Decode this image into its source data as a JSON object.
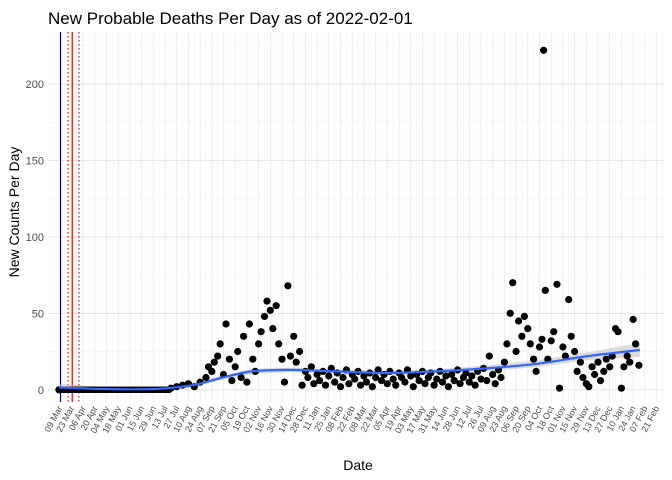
{
  "chart_data": {
    "type": "scatter",
    "title": "New Probable Deaths Per Day as of 2022-02-01",
    "xlabel": "Date",
    "ylabel": "New Counts Per Day",
    "ylim": [
      -8,
      234
    ],
    "y_ticks": [
      0,
      50,
      100,
      150,
      200
    ],
    "xlim": [
      "2020-02-24",
      "2022-03-02"
    ],
    "x_tick_labels": [
      "09 Mar",
      "23 Mar",
      "06 Apr",
      "20 Apr",
      "04 May",
      "18 May",
      "01 Jun",
      "15 Jun",
      "29 Jun",
      "13 Jul",
      "27 Jul",
      "10 Aug",
      "24 Aug",
      "07 Sep",
      "21 Sep",
      "05 Oct",
      "19 Oct",
      "02 Nov",
      "16 Nov",
      "30 Nov",
      "14 Dec",
      "28 Dec",
      "11 Jan",
      "25 Jan",
      "08 Feb",
      "22 Feb",
      "08 Mar",
      "22 Mar",
      "05 Apr",
      "19 Apr",
      "03 May",
      "17 May",
      "31 May",
      "14 Jun",
      "28 Jun",
      "12 Jul",
      "26 Jul",
      "09 Aug",
      "23 Aug",
      "06 Sep",
      "20 Sep",
      "04 Oct",
      "18 Oct",
      "01 Nov",
      "15 Nov",
      "29 Nov",
      "13 Dec",
      "27 Dec",
      "10 Jan",
      "24 Jan",
      "07 Feb",
      "21 Feb"
    ],
    "grid": true,
    "vertical_lines": [
      {
        "date": "2020-03-10",
        "color": "#00008b",
        "style": "solid"
      },
      {
        "date": "2020-03-24",
        "color": "#cc0000",
        "style": "solid"
      },
      {
        "date": "2020-03-19",
        "color": "#cc0000",
        "style": "dotted"
      },
      {
        "date": "2020-04-01",
        "color": "#cc0000",
        "style": "dotted"
      }
    ],
    "trend": {
      "color": "#3366ff",
      "band_color": "#bdbdbd",
      "points": [
        {
          "x": "2020-03-08",
          "y": 1.5
        },
        {
          "x": "2020-05-01",
          "y": 0.5
        },
        {
          "x": "2020-07-01",
          "y": 0.5
        },
        {
          "x": "2020-08-15",
          "y": 3
        },
        {
          "x": "2020-09-20",
          "y": 8
        },
        {
          "x": "2020-10-25",
          "y": 12
        },
        {
          "x": "2020-12-10",
          "y": 13
        },
        {
          "x": "2021-02-01",
          "y": 12
        },
        {
          "x": "2021-04-01",
          "y": 11
        },
        {
          "x": "2021-06-01",
          "y": 12
        },
        {
          "x": "2021-08-01",
          "y": 14
        },
        {
          "x": "2021-10-01",
          "y": 17
        },
        {
          "x": "2021-12-01",
          "y": 22
        },
        {
          "x": "2022-02-01",
          "y": 26
        }
      ],
      "band_halfwidth": [
        2.5,
        1.5,
        1.2,
        1.2,
        1.5,
        1.8,
        1.5,
        1.2,
        1.2,
        1.3,
        1.8,
        2.2,
        2.6,
        4.5
      ]
    },
    "series": [
      {
        "color": "#000000",
        "points": [
          {
            "x": "2020-03-08",
            "y": 0
          },
          {
            "x": "2020-07-20",
            "y": 1
          },
          {
            "x": "2020-07-27",
            "y": 2
          },
          {
            "x": "2020-08-03",
            "y": 3
          },
          {
            "x": "2020-08-10",
            "y": 4
          },
          {
            "x": "2020-08-17",
            "y": 2
          },
          {
            "x": "2020-08-24",
            "y": 5
          },
          {
            "x": "2020-08-31",
            "y": 8
          },
          {
            "x": "2020-09-03",
            "y": 15
          },
          {
            "x": "2020-09-07",
            "y": 12
          },
          {
            "x": "2020-09-10",
            "y": 18
          },
          {
            "x": "2020-09-14",
            "y": 22
          },
          {
            "x": "2020-09-17",
            "y": 30
          },
          {
            "x": "2020-09-21",
            "y": 10
          },
          {
            "x": "2020-09-24",
            "y": 43
          },
          {
            "x": "2020-09-28",
            "y": 20
          },
          {
            "x": "2020-10-01",
            "y": 6
          },
          {
            "x": "2020-10-05",
            "y": 15
          },
          {
            "x": "2020-10-08",
            "y": 25
          },
          {
            "x": "2020-10-12",
            "y": 8
          },
          {
            "x": "2020-10-15",
            "y": 35
          },
          {
            "x": "2020-10-19",
            "y": 5
          },
          {
            "x": "2020-10-22",
            "y": 43
          },
          {
            "x": "2020-10-26",
            "y": 20
          },
          {
            "x": "2020-10-29",
            "y": 12
          },
          {
            "x": "2020-11-02",
            "y": 30
          },
          {
            "x": "2020-11-05",
            "y": 38
          },
          {
            "x": "2020-11-09",
            "y": 48
          },
          {
            "x": "2020-11-12",
            "y": 58
          },
          {
            "x": "2020-11-16",
            "y": 52
          },
          {
            "x": "2020-11-19",
            "y": 40
          },
          {
            "x": "2020-11-23",
            "y": 55
          },
          {
            "x": "2020-11-26",
            "y": 30
          },
          {
            "x": "2020-11-30",
            "y": 20
          },
          {
            "x": "2020-12-03",
            "y": 5
          },
          {
            "x": "2020-12-07",
            "y": 68
          },
          {
            "x": "2020-12-10",
            "y": 22
          },
          {
            "x": "2020-12-14",
            "y": 35
          },
          {
            "x": "2020-12-17",
            "y": 18
          },
          {
            "x": "2020-12-21",
            "y": 25
          },
          {
            "x": "2020-12-24",
            "y": 3
          },
          {
            "x": "2020-12-28",
            "y": 12
          },
          {
            "x": "2020-12-31",
            "y": 8
          },
          {
            "x": "2021-01-04",
            "y": 15
          },
          {
            "x": "2021-01-07",
            "y": 4
          },
          {
            "x": "2021-01-11",
            "y": 10
          },
          {
            "x": "2021-01-14",
            "y": 6
          },
          {
            "x": "2021-01-18",
            "y": 12
          },
          {
            "x": "2021-01-21",
            "y": 3
          },
          {
            "x": "2021-01-25",
            "y": 9
          },
          {
            "x": "2021-01-28",
            "y": 14
          },
          {
            "x": "2021-02-01",
            "y": 5
          },
          {
            "x": "2021-02-04",
            "y": 11
          },
          {
            "x": "2021-02-08",
            "y": 2
          },
          {
            "x": "2021-02-11",
            "y": 8
          },
          {
            "x": "2021-02-15",
            "y": 13
          },
          {
            "x": "2021-02-18",
            "y": 4
          },
          {
            "x": "2021-02-22",
            "y": 10
          },
          {
            "x": "2021-02-25",
            "y": 7
          },
          {
            "x": "2021-03-01",
            "y": 12
          },
          {
            "x": "2021-03-04",
            "y": 3
          },
          {
            "x": "2021-03-08",
            "y": 9
          },
          {
            "x": "2021-03-11",
            "y": 5
          },
          {
            "x": "2021-03-15",
            "y": 11
          },
          {
            "x": "2021-03-18",
            "y": 2
          },
          {
            "x": "2021-03-22",
            "y": 8
          },
          {
            "x": "2021-03-25",
            "y": 13
          },
          {
            "x": "2021-03-29",
            "y": 6
          },
          {
            "x": "2021-04-01",
            "y": 10
          },
          {
            "x": "2021-04-05",
            "y": 4
          },
          {
            "x": "2021-04-08",
            "y": 12
          },
          {
            "x": "2021-04-12",
            "y": 7
          },
          {
            "x": "2021-04-15",
            "y": 3
          },
          {
            "x": "2021-04-19",
            "y": 11
          },
          {
            "x": "2021-04-22",
            "y": 8
          },
          {
            "x": "2021-04-26",
            "y": 5
          },
          {
            "x": "2021-04-29",
            "y": 13
          },
          {
            "x": "2021-05-03",
            "y": 9
          },
          {
            "x": "2021-05-06",
            "y": 2
          },
          {
            "x": "2021-05-10",
            "y": 10
          },
          {
            "x": "2021-05-13",
            "y": 6
          },
          {
            "x": "2021-05-17",
            "y": 12
          },
          {
            "x": "2021-05-20",
            "y": 4
          },
          {
            "x": "2021-05-24",
            "y": 8
          },
          {
            "x": "2021-05-27",
            "y": 11
          },
          {
            "x": "2021-05-31",
            "y": 3
          },
          {
            "x": "2021-06-03",
            "y": 7
          },
          {
            "x": "2021-06-07",
            "y": 12
          },
          {
            "x": "2021-06-10",
            "y": 5
          },
          {
            "x": "2021-06-14",
            "y": 9
          },
          {
            "x": "2021-06-17",
            "y": 2
          },
          {
            "x": "2021-06-21",
            "y": 10
          },
          {
            "x": "2021-06-24",
            "y": 6
          },
          {
            "x": "2021-06-28",
            "y": 13
          },
          {
            "x": "2021-07-01",
            "y": 4
          },
          {
            "x": "2021-07-05",
            "y": 8
          },
          {
            "x": "2021-07-08",
            "y": 11
          },
          {
            "x": "2021-07-12",
            "y": 5
          },
          {
            "x": "2021-07-15",
            "y": 9
          },
          {
            "x": "2021-07-19",
            "y": 3
          },
          {
            "x": "2021-07-22",
            "y": 12
          },
          {
            "x": "2021-07-26",
            "y": 7
          },
          {
            "x": "2021-07-29",
            "y": 14
          },
          {
            "x": "2021-08-02",
            "y": 6
          },
          {
            "x": "2021-08-05",
            "y": 22
          },
          {
            "x": "2021-08-09",
            "y": 10
          },
          {
            "x": "2021-08-12",
            "y": 4
          },
          {
            "x": "2021-08-16",
            "y": 13
          },
          {
            "x": "2021-08-19",
            "y": 8
          },
          {
            "x": "2021-08-23",
            "y": 18
          },
          {
            "x": "2021-08-26",
            "y": 30
          },
          {
            "x": "2021-08-30",
            "y": 50
          },
          {
            "x": "2021-09-02",
            "y": 70
          },
          {
            "x": "2021-09-06",
            "y": 25
          },
          {
            "x": "2021-09-09",
            "y": 45
          },
          {
            "x": "2021-09-13",
            "y": 35
          },
          {
            "x": "2021-09-16",
            "y": 48
          },
          {
            "x": "2021-09-20",
            "y": 40
          },
          {
            "x": "2021-09-23",
            "y": 30
          },
          {
            "x": "2021-09-27",
            "y": 20
          },
          {
            "x": "2021-09-30",
            "y": 12
          },
          {
            "x": "2021-10-04",
            "y": 28
          },
          {
            "x": "2021-10-07",
            "y": 33
          },
          {
            "x": "2021-10-09",
            "y": 222
          },
          {
            "x": "2021-10-11",
            "y": 65
          },
          {
            "x": "2021-10-14",
            "y": 20
          },
          {
            "x": "2021-10-18",
            "y": 32
          },
          {
            "x": "2021-10-21",
            "y": 38
          },
          {
            "x": "2021-10-25",
            "y": 69
          },
          {
            "x": "2021-10-28",
            "y": 1
          },
          {
            "x": "2021-11-01",
            "y": 28
          },
          {
            "x": "2021-11-04",
            "y": 22
          },
          {
            "x": "2021-11-08",
            "y": 59
          },
          {
            "x": "2021-11-11",
            "y": 35
          },
          {
            "x": "2021-11-15",
            "y": 25
          },
          {
            "x": "2021-11-18",
            "y": 12
          },
          {
            "x": "2021-11-22",
            "y": 18
          },
          {
            "x": "2021-11-25",
            "y": 8
          },
          {
            "x": "2021-11-29",
            "y": 4
          },
          {
            "x": "2021-12-02",
            "y": 2
          },
          {
            "x": "2021-12-06",
            "y": 15
          },
          {
            "x": "2021-12-09",
            "y": 10
          },
          {
            "x": "2021-12-13",
            "y": 18
          },
          {
            "x": "2021-12-16",
            "y": 6
          },
          {
            "x": "2021-12-20",
            "y": 12
          },
          {
            "x": "2021-12-23",
            "y": 20
          },
          {
            "x": "2021-12-27",
            "y": 15
          },
          {
            "x": "2021-12-30",
            "y": 22
          },
          {
            "x": "2022-01-03",
            "y": 40
          },
          {
            "x": "2022-01-06",
            "y": 38
          },
          {
            "x": "2022-01-10",
            "y": 1
          },
          {
            "x": "2022-01-13",
            "y": 15
          },
          {
            "x": "2022-01-17",
            "y": 22
          },
          {
            "x": "2022-01-20",
            "y": 18
          },
          {
            "x": "2022-01-24",
            "y": 46
          },
          {
            "x": "2022-01-27",
            "y": 30
          },
          {
            "x": "2022-01-31",
            "y": 16
          }
        ]
      }
    ]
  }
}
